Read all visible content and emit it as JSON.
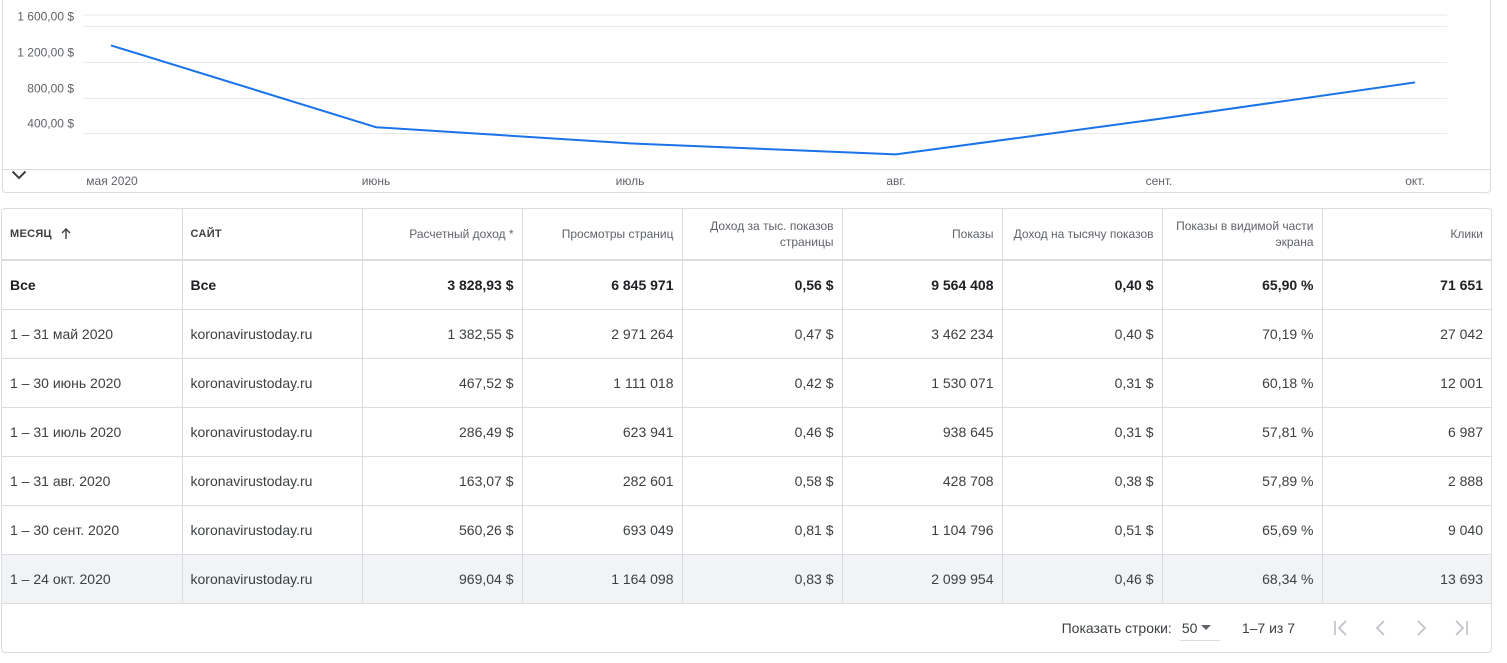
{
  "chart_data": {
    "type": "line",
    "x": [
      "мая 2020",
      "июнь",
      "июль",
      "авг.",
      "сент.",
      "окт."
    ],
    "series": [
      {
        "values": [
          1382.55,
          467.52,
          286.49,
          163.07,
          560.26,
          969.04
        ]
      }
    ],
    "y_ticks": [
      "400,00 $",
      "800,00 $",
      "1 200,00 $",
      "1 600,00 $"
    ],
    "ylim": [
      0,
      1600
    ],
    "grid": true,
    "line_color": "#1a73e8"
  },
  "chart": {
    "collapse_icon": "chevron-down-icon"
  },
  "table": {
    "headers": {
      "month": "Месяц",
      "site": "Сайт",
      "revenue": "Расчетный доход *",
      "pageviews": "Просмотры страниц",
      "page_rpm": "Доход за тыс. показов страницы",
      "impressions": "Показы",
      "impression_rpm": "Доход на тысячу показов",
      "viewability": "Показы в видимой части экрана",
      "clicks": "Клики"
    },
    "rows": [
      [
        "Все",
        "Все",
        "3 828,93 $",
        "6 845 971",
        "0,56 $",
        "9 564 408",
        "0,40 $",
        "65,90 %",
        "71 651"
      ],
      [
        "1 – 31 май 2020",
        "koronavirustoday.ru",
        "1 382,55 $",
        "2 971 264",
        "0,47 $",
        "3 462 234",
        "0,40 $",
        "70,19 %",
        "27 042"
      ],
      [
        "1 – 30 июнь 2020",
        "koronavirustoday.ru",
        "467,52 $",
        "1 111 018",
        "0,42 $",
        "1 530 071",
        "0,31 $",
        "60,18 %",
        "12 001"
      ],
      [
        "1 – 31 июль 2020",
        "koronavirustoday.ru",
        "286,49 $",
        "623 941",
        "0,46 $",
        "938 645",
        "0,31 $",
        "57,81 %",
        "6 987"
      ],
      [
        "1 – 31 авг. 2020",
        "koronavirustoday.ru",
        "163,07 $",
        "282 601",
        "0,58 $",
        "428 708",
        "0,38 $",
        "57,89 %",
        "2 888"
      ],
      [
        "1 – 30 сент. 2020",
        "koronavirustoday.ru",
        "560,26 $",
        "693 049",
        "0,81 $",
        "1 104 796",
        "0,51 $",
        "65,69 %",
        "9 040"
      ],
      [
        "1 – 24 окт. 2020",
        "koronavirustoday.ru",
        "969,04 $",
        "1 164 098",
        "0,83 $",
        "2 099 954",
        "0,46 $",
        "68,34 %",
        "13 693"
      ]
    ]
  },
  "pagination": {
    "rows_label": "Показать строки:",
    "rows_value": "50",
    "range": "1–7 из 7"
  },
  "colors": {
    "accent": "#1a73e8",
    "border": "#dadce0",
    "highlight_row": "#f1f3f4"
  }
}
